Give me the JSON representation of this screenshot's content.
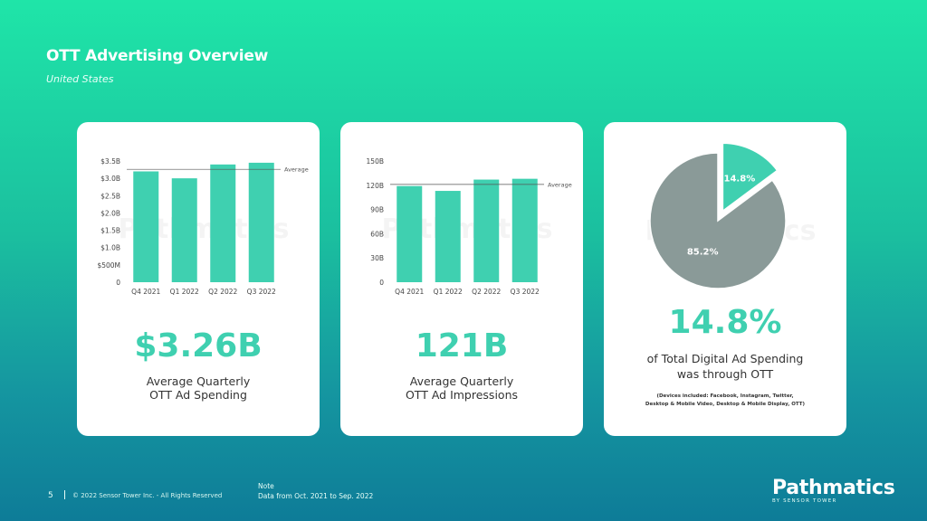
{
  "header": {
    "title": "OTT Advertising Overview",
    "subtitle": "United States"
  },
  "colors": {
    "bar": "#3fd0b0",
    "pie_gray": "#8a9a98",
    "pie_accent": "#3fd0b0"
  },
  "watermark": "Pathmatics",
  "chart_data": [
    {
      "type": "bar",
      "title": "",
      "categories": [
        "Q4 2021",
        "Q1 2022",
        "Q2 2022",
        "Q3 2022"
      ],
      "values": [
        3.2,
        3.0,
        3.4,
        3.45
      ],
      "ylim": [
        0,
        3.5
      ],
      "yticks": [
        0,
        0.5,
        1.0,
        1.5,
        2.0,
        2.5,
        3.0,
        3.5
      ],
      "ytick_labels": [
        "0",
        "$500M",
        "$1.0B",
        "$1.5B",
        "$2.0B",
        "$2.5B",
        "$3.0B",
        "$3.5B"
      ],
      "average": 3.26,
      "average_label": "Average",
      "xlabel": "",
      "ylabel": ""
    },
    {
      "type": "bar",
      "title": "",
      "categories": [
        "Q4 2021",
        "Q1 2022",
        "Q2 2022",
        "Q3 2022"
      ],
      "values": [
        119,
        113,
        127,
        128
      ],
      "ylim": [
        0,
        150
      ],
      "yticks": [
        0,
        30,
        60,
        90,
        120,
        150
      ],
      "ytick_labels": [
        "0",
        "30B",
        "60B",
        "90B",
        "120B",
        "150B"
      ],
      "average": 121,
      "average_label": "Average",
      "xlabel": "",
      "ylabel": ""
    },
    {
      "type": "pie",
      "title": "",
      "slices": [
        {
          "label": "14.8%",
          "value": 14.8,
          "exploded": true
        },
        {
          "label": "85.2%",
          "value": 85.2,
          "exploded": false
        }
      ]
    }
  ],
  "cards": [
    {
      "big_value": "$3.26B",
      "caption_line1": "Average Quarterly",
      "caption_line2": "OTT Ad Spending"
    },
    {
      "big_value": "121B",
      "caption_line1": "Average Quarterly",
      "caption_line2": "OTT Ad Impressions"
    },
    {
      "big_value": "14.8%",
      "caption_line1": "of Total Digital Ad Spending",
      "caption_line2": "was through OTT",
      "devices_line1": "(Devices included: Facebook, Instagram, Twitter,",
      "devices_line2": "Desktop & Mobile Video, Desktop & Mobile Display, OTT)"
    }
  ],
  "footer": {
    "page": "5",
    "copyright": "© 2022 Sensor Tower Inc. - All Rights Reserved",
    "note_label": "Note",
    "note": "Data from Oct. 2021 to Sep. 2022",
    "brand": "Pathmatics",
    "brand_sub": "BY SENSOR TOWER"
  }
}
